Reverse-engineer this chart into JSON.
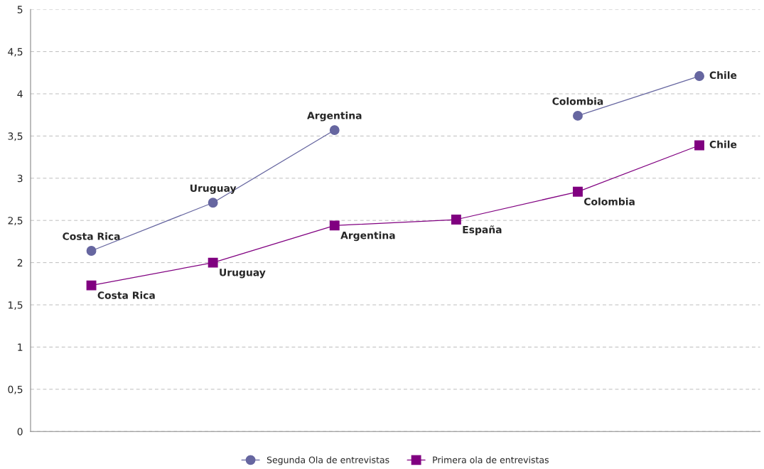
{
  "chart_data": {
    "type": "line",
    "categories": [
      null,
      null,
      null,
      null,
      null,
      null
    ],
    "series": [
      {
        "name": "Segunda Ola de entrevistas",
        "color": "#6666a0",
        "marker": "circle",
        "values": [
          2.14,
          2.71,
          3.57,
          null,
          3.74,
          4.21
        ],
        "value_labels": [
          "Costa Rica",
          "Uruguay",
          "Argentina",
          null,
          "Colombia",
          "Chile"
        ]
      },
      {
        "name": "Primera ola de entrevistas",
        "color": "#800080",
        "marker": "square",
        "values": [
          1.73,
          2.0,
          2.44,
          2.51,
          2.84,
          3.39
        ],
        "value_labels": [
          "Costa Rica",
          "Uruguay",
          "Argentina",
          "España",
          "Colombia",
          "Chile"
        ]
      }
    ],
    "ylim": [
      0,
      5
    ],
    "yticks": [
      {
        "value": 0,
        "label": "0"
      },
      {
        "value": 0.5,
        "label": "0,5"
      },
      {
        "value": 1,
        "label": "1"
      },
      {
        "value": 1.5,
        "label": "1,5"
      },
      {
        "value": 2,
        "label": "2"
      },
      {
        "value": 2.5,
        "label": "2,5"
      },
      {
        "value": 3,
        "label": "3"
      },
      {
        "value": 3.5,
        "label": "3,5"
      },
      {
        "value": 4,
        "label": "4"
      },
      {
        "value": 4.5,
        "label": "4,5"
      },
      {
        "value": 5,
        "label": "5"
      }
    ],
    "grid": "y",
    "legend": "bottom",
    "line_style": "solid"
  }
}
